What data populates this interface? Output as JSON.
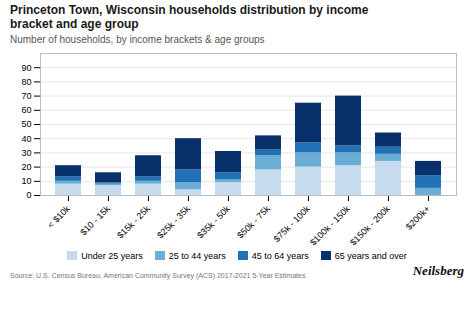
{
  "chart_data": {
    "type": "bar",
    "stacked": true,
    "title": "Princeton Town, Wisconsin households distribution by income\nbracket and age group",
    "subtitle": "Number of households, by income brackets & age groups",
    "annotations": [
      "Source: U.S. Census Bureau, American Community Survey (ACS) 2017-2021 5-Year Estimates",
      "Neilsberg"
    ],
    "categories": [
      "< $10k",
      "$10 - 15k",
      "$15k - 25k",
      "$25k - 35k",
      "$35k - 50k",
      "$50k - 75k",
      "$75k - 100k",
      "$100k - 150k",
      "$150k - 200k",
      "$200k+"
    ],
    "series": [
      {
        "name": "Under 25 years",
        "color": "#c6dcee",
        "values": [
          8,
          7,
          8,
          4,
          9,
          18,
          20,
          21,
          24,
          0
        ]
      },
      {
        "name": "25 to 44 years",
        "color": "#6aaed6",
        "values": [
          2,
          1,
          2,
          5,
          2,
          10,
          10,
          9,
          5,
          5
        ]
      },
      {
        "name": "45 to 64 years",
        "color": "#2171b5",
        "values": [
          3,
          1,
          3,
          9,
          5,
          4,
          7,
          5,
          5,
          9
        ]
      },
      {
        "name": "65 years and over",
        "color": "#08306b",
        "values": [
          8,
          7,
          15,
          22,
          15,
          10,
          28,
          35,
          10,
          10
        ]
      }
    ],
    "ylim": [
      0,
      100
    ],
    "yticks": [
      0,
      10,
      20,
      30,
      40,
      50,
      60,
      70,
      80,
      90
    ],
    "grid": true,
    "legend": "bottom"
  }
}
